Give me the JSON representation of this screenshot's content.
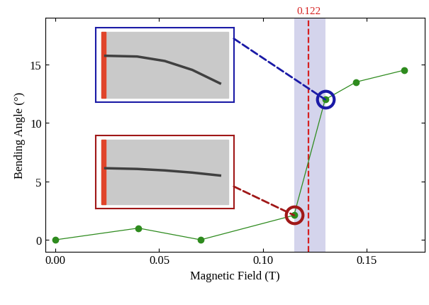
{
  "chart_data": {
    "type": "line",
    "x_label": "Magnetic Field (T)",
    "y_label": "Bending Angle (°)",
    "x": [
      0.0,
      0.04,
      0.07,
      0.115,
      0.13,
      0.145,
      0.168
    ],
    "values": [
      0.0,
      1.0,
      0.0,
      2.1,
      12.0,
      13.5,
      14.5
    ],
    "color": "#2e8b1e",
    "marker": "o",
    "line_style": "solid",
    "xlim": [
      -0.005,
      0.178
    ],
    "ylim": [
      -1,
      19
    ],
    "xticks": [
      {
        "value": 0.0,
        "label": "0.00"
      },
      {
        "value": 0.05,
        "label": "0.05"
      },
      {
        "value": 0.1,
        "label": "0.10"
      },
      {
        "value": 0.15,
        "label": "0.15"
      }
    ],
    "yticks": [
      0,
      5,
      10,
      15
    ],
    "grid": false,
    "threshold": 0.122,
    "band": [
      0.115,
      0.13
    ],
    "highlights": [
      {
        "x": 0.13,
        "color": "#1a1aa6"
      },
      {
        "x": 0.115,
        "color": "#a01818"
      }
    ]
  }
}
